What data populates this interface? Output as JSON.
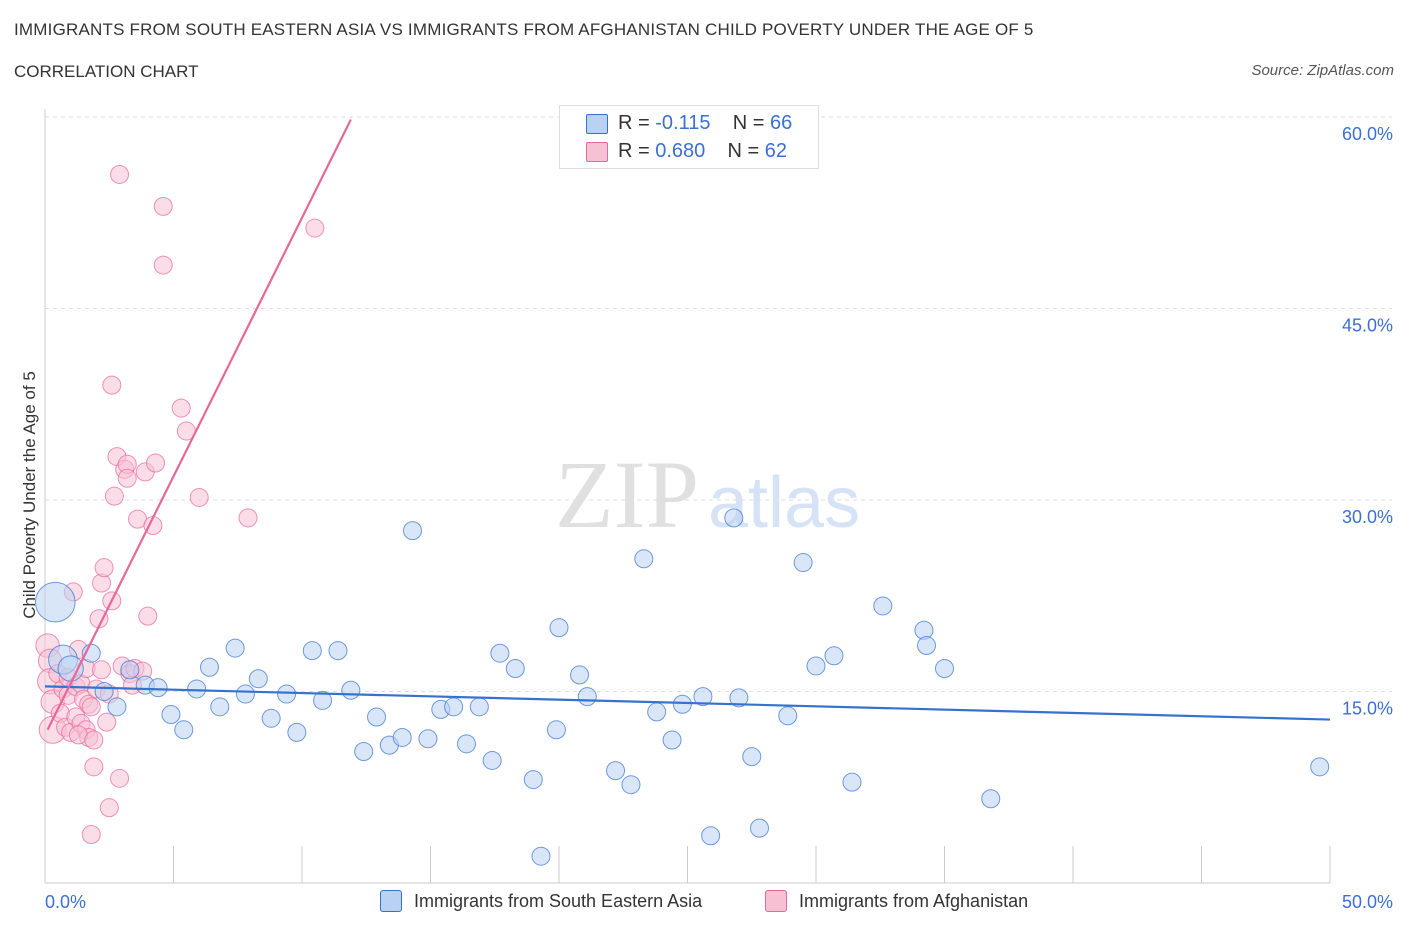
{
  "title": "IMMIGRANTS FROM SOUTH EASTERN ASIA VS IMMIGRANTS FROM AFGHANISTAN CHILD POVERTY UNDER THE AGE OF 5",
  "subtitle": "CORRELATION CHART",
  "source": "Source: ZipAtlas.com",
  "watermark": {
    "zip": "ZIP",
    "atlas": "atlas"
  },
  "colors": {
    "blue": "#3572d0",
    "blue_fill": "#b9d1f3",
    "pink": "#e8679a",
    "pink_fill": "#f6c1d3",
    "axis_text": "#3b6fd4",
    "grid": "#dddddd"
  },
  "legend": {
    "rows": [
      {
        "r_label": "R = ",
        "r_value": "-0.115",
        "n_label": "N = ",
        "n_value": "66"
      },
      {
        "r_label": "R = ",
        "r_value": "0.680",
        "n_label": "N = ",
        "n_value": "62"
      }
    ]
  },
  "chart_data": {
    "type": "scatter",
    "title": "IMMIGRANTS FROM SOUTH EASTERN ASIA VS IMMIGRANTS FROM AFGHANISTAN CHILD POVERTY UNDER THE AGE OF 5",
    "subtitle": "CORRELATION CHART",
    "ylabel": "Child Poverty Under the Age of 5",
    "xlim": [
      0,
      50
    ],
    "ylim": [
      0,
      60
    ],
    "x_tick_labels": [
      "0.0%",
      "50.0%"
    ],
    "y_ticks": [
      15,
      30,
      45,
      60
    ],
    "y_tick_labels": [
      "15.0%",
      "30.0%",
      "45.0%",
      "60.0%"
    ],
    "grid": true,
    "legend_position": "bottom",
    "series": [
      {
        "name": "Immigrants from South Eastern Asia",
        "color": "#3572d0",
        "R": -0.115,
        "N": 66,
        "trend": {
          "x": [
            0,
            50
          ],
          "y": [
            15.4,
            12.8
          ]
        },
        "points": [
          {
            "x": 0.4,
            "y": 22.0,
            "s": 2.2
          },
          {
            "x": 0.7,
            "y": 17.5,
            "s": 1.6
          },
          {
            "x": 1.0,
            "y": 16.8,
            "s": 1.4
          },
          {
            "x": 1.8,
            "y": 18.0
          },
          {
            "x": 2.3,
            "y": 15.0
          },
          {
            "x": 2.8,
            "y": 13.8
          },
          {
            "x": 3.3,
            "y": 16.7
          },
          {
            "x": 3.9,
            "y": 15.5
          },
          {
            "x": 4.4,
            "y": 15.3
          },
          {
            "x": 4.9,
            "y": 13.2
          },
          {
            "x": 5.4,
            "y": 12.0
          },
          {
            "x": 5.9,
            "y": 15.2
          },
          {
            "x": 6.4,
            "y": 16.9
          },
          {
            "x": 6.8,
            "y": 13.8
          },
          {
            "x": 7.4,
            "y": 18.4
          },
          {
            "x": 7.8,
            "y": 14.8
          },
          {
            "x": 8.3,
            "y": 16.0
          },
          {
            "x": 8.8,
            "y": 12.9
          },
          {
            "x": 9.4,
            "y": 14.8
          },
          {
            "x": 9.8,
            "y": 11.8
          },
          {
            "x": 10.4,
            "y": 18.2
          },
          {
            "x": 10.8,
            "y": 14.3
          },
          {
            "x": 11.4,
            "y": 18.2
          },
          {
            "x": 11.9,
            "y": 15.1
          },
          {
            "x": 12.4,
            "y": 10.3
          },
          {
            "x": 12.9,
            "y": 13.0
          },
          {
            "x": 13.4,
            "y": 10.8
          },
          {
            "x": 13.9,
            "y": 11.4
          },
          {
            "x": 14.3,
            "y": 27.6
          },
          {
            "x": 14.9,
            "y": 11.3
          },
          {
            "x": 15.4,
            "y": 13.6
          },
          {
            "x": 15.9,
            "y": 13.8
          },
          {
            "x": 16.4,
            "y": 10.9
          },
          {
            "x": 16.9,
            "y": 13.8
          },
          {
            "x": 17.4,
            "y": 9.6
          },
          {
            "x": 17.7,
            "y": 18.0
          },
          {
            "x": 18.3,
            "y": 16.8
          },
          {
            "x": 19.0,
            "y": 8.1
          },
          {
            "x": 19.3,
            "y": 2.1
          },
          {
            "x": 19.9,
            "y": 12.0
          },
          {
            "x": 20.0,
            "y": 20.0
          },
          {
            "x": 20.8,
            "y": 16.3
          },
          {
            "x": 21.1,
            "y": 14.6
          },
          {
            "x": 22.2,
            "y": 8.8
          },
          {
            "x": 22.8,
            "y": 7.7
          },
          {
            "x": 23.3,
            "y": 25.4
          },
          {
            "x": 23.8,
            "y": 13.4
          },
          {
            "x": 24.4,
            "y": 11.2
          },
          {
            "x": 24.8,
            "y": 14.0
          },
          {
            "x": 25.6,
            "y": 14.6
          },
          {
            "x": 25.9,
            "y": 3.7
          },
          {
            "x": 26.8,
            "y": 28.6
          },
          {
            "x": 27.0,
            "y": 14.5
          },
          {
            "x": 27.5,
            "y": 9.9
          },
          {
            "x": 27.8,
            "y": 4.3
          },
          {
            "x": 28.9,
            "y": 13.1
          },
          {
            "x": 29.5,
            "y": 25.1
          },
          {
            "x": 30.0,
            "y": 17.0
          },
          {
            "x": 30.7,
            "y": 17.8
          },
          {
            "x": 31.4,
            "y": 7.9
          },
          {
            "x": 32.6,
            "y": 21.7
          },
          {
            "x": 34.2,
            "y": 19.8
          },
          {
            "x": 34.3,
            "y": 18.6
          },
          {
            "x": 35.0,
            "y": 16.8
          },
          {
            "x": 36.8,
            "y": 6.6
          },
          {
            "x": 49.6,
            "y": 9.1
          }
        ]
      },
      {
        "name": "Immigrants from Afghanistan",
        "color": "#e8679a",
        "R": 0.68,
        "N": 62,
        "trend": {
          "x": [
            0.1,
            11.9
          ],
          "y": [
            12.0,
            59.8
          ]
        },
        "points": [
          {
            "x": 0.1,
            "y": 18.6,
            "s": 1.3
          },
          {
            "x": 0.2,
            "y": 17.4,
            "s": 1.3
          },
          {
            "x": 0.2,
            "y": 15.8,
            "s": 1.4
          },
          {
            "x": 0.3,
            "y": 14.2,
            "s": 1.3
          },
          {
            "x": 0.3,
            "y": 12.0,
            "s": 1.5
          },
          {
            "x": 0.5,
            "y": 16.4
          },
          {
            "x": 0.6,
            "y": 13.3
          },
          {
            "x": 0.7,
            "y": 15.2
          },
          {
            "x": 0.8,
            "y": 12.2
          },
          {
            "x": 0.9,
            "y": 16.1
          },
          {
            "x": 0.9,
            "y": 14.7
          },
          {
            "x": 1.0,
            "y": 11.8
          },
          {
            "x": 1.1,
            "y": 22.8
          },
          {
            "x": 1.2,
            "y": 15.4
          },
          {
            "x": 1.2,
            "y": 13.0
          },
          {
            "x": 1.3,
            "y": 18.3
          },
          {
            "x": 1.4,
            "y": 15.6
          },
          {
            "x": 1.4,
            "y": 12.5
          },
          {
            "x": 1.5,
            "y": 14.4
          },
          {
            "x": 1.6,
            "y": 16.8
          },
          {
            "x": 1.6,
            "y": 12.0
          },
          {
            "x": 1.7,
            "y": 14.0
          },
          {
            "x": 1.7,
            "y": 11.4
          },
          {
            "x": 1.8,
            "y": 3.8
          },
          {
            "x": 1.8,
            "y": 13.8
          },
          {
            "x": 1.9,
            "y": 9.1
          },
          {
            "x": 2.0,
            "y": 15.2
          },
          {
            "x": 2.1,
            "y": 20.7
          },
          {
            "x": 2.2,
            "y": 16.7
          },
          {
            "x": 2.2,
            "y": 23.5
          },
          {
            "x": 2.3,
            "y": 24.7
          },
          {
            "x": 2.4,
            "y": 12.6
          },
          {
            "x": 2.5,
            "y": 14.8
          },
          {
            "x": 2.5,
            "y": 5.9
          },
          {
            "x": 2.6,
            "y": 39.0
          },
          {
            "x": 2.6,
            "y": 22.1
          },
          {
            "x": 2.7,
            "y": 30.3
          },
          {
            "x": 2.8,
            "y": 33.4
          },
          {
            "x": 2.9,
            "y": 55.5
          },
          {
            "x": 2.9,
            "y": 8.2
          },
          {
            "x": 3.0,
            "y": 17.0
          },
          {
            "x": 3.1,
            "y": 32.4
          },
          {
            "x": 3.2,
            "y": 32.8
          },
          {
            "x": 3.2,
            "y": 31.7
          },
          {
            "x": 3.3,
            "y": 16.4
          },
          {
            "x": 3.4,
            "y": 15.5
          },
          {
            "x": 3.5,
            "y": 16.8
          },
          {
            "x": 3.6,
            "y": 28.5
          },
          {
            "x": 3.8,
            "y": 16.6
          },
          {
            "x": 3.9,
            "y": 32.2
          },
          {
            "x": 4.0,
            "y": 20.9
          },
          {
            "x": 4.2,
            "y": 28.0
          },
          {
            "x": 4.3,
            "y": 32.9
          },
          {
            "x": 4.6,
            "y": 53.0
          },
          {
            "x": 4.6,
            "y": 48.4
          },
          {
            "x": 5.3,
            "y": 37.2
          },
          {
            "x": 5.5,
            "y": 35.4
          },
          {
            "x": 6.0,
            "y": 30.2
          },
          {
            "x": 7.9,
            "y": 28.6
          },
          {
            "x": 10.5,
            "y": 51.3
          },
          {
            "x": 1.3,
            "y": 11.6
          },
          {
            "x": 1.9,
            "y": 11.2
          }
        ]
      }
    ]
  }
}
